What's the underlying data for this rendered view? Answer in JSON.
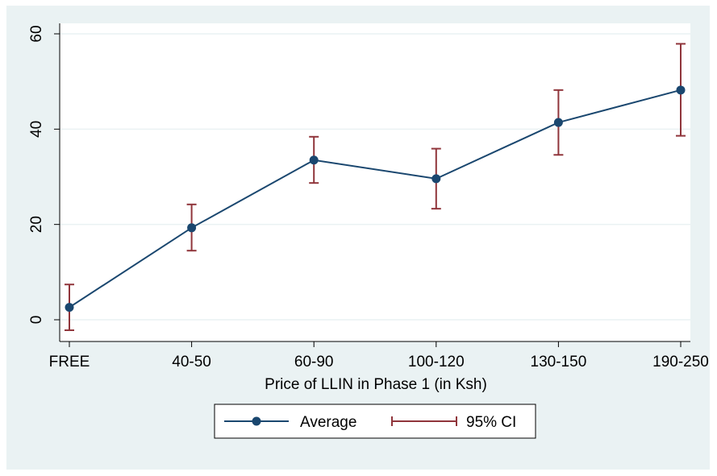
{
  "chart_data": {
    "type": "line",
    "categories": [
      "FREE",
      "40-50",
      "60-90",
      "100-120",
      "130-150",
      "190-250"
    ],
    "series": [
      {
        "name": "Average",
        "values": [
          2.6,
          19.3,
          33.5,
          29.6,
          41.4,
          48.2
        ],
        "color": "#1a476f",
        "marker": "filled-circle"
      }
    ],
    "ci": {
      "name": "95% CI",
      "lower": [
        -2.2,
        14.5,
        28.7,
        23.3,
        34.6,
        38.6
      ],
      "upper": [
        7.4,
        24.2,
        38.4,
        35.9,
        48.2,
        57.9
      ],
      "color": "#90353b"
    },
    "xlabel": "Price of LLIN in Phase 1 (in Ksh)",
    "ylabel": "",
    "ylim": [
      -5,
      62
    ],
    "yticks": [
      0,
      20,
      40,
      60
    ],
    "grid": true,
    "legend": {
      "placement": "bottom",
      "entries": [
        "Average",
        "95% CI"
      ]
    },
    "colors": {
      "background": "#eaf2f3",
      "plot_background": "#ffffff",
      "gridline": "#eaf2f3"
    }
  }
}
